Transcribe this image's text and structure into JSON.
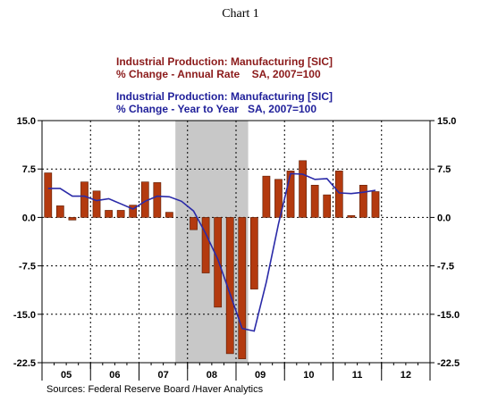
{
  "chart_data": {
    "type": "bar",
    "title": "Chart 1",
    "legend": [
      {
        "line1": "Industrial Production: Manufacturing [SIC]",
        "line2": "% Change - Annual Rate    SA, 2007=100",
        "color": "#8b1a1a"
      },
      {
        "line1": "Industrial Production: Manufacturing [SIC]",
        "line2": "% Change - Year to Year   SA, 2007=100",
        "color": "#1f1f9a"
      }
    ],
    "x_labels": [
      "05",
      "06",
      "07",
      "08",
      "09",
      "10",
      "11",
      "12"
    ],
    "y_ticks": [
      "15.0",
      "7.5",
      "0.0",
      "-7.5",
      "-15.0",
      "-22.5"
    ],
    "y_tick_values": [
      15,
      7.5,
      0,
      -7.5,
      -15,
      -22.5
    ],
    "ylim": [
      -22.5,
      15
    ],
    "recession_quarters": [
      11,
      16
    ],
    "grid": true,
    "bar_color": "#b33a0f",
    "line_color": "#2a2aa8",
    "series": [
      {
        "type": "bar",
        "values": [
          6.9,
          1.8,
          -0.4,
          5.5,
          4.1,
          1.1,
          1.1,
          1.9,
          5.5,
          5.4,
          0.8,
          null,
          -1.9,
          -8.6,
          -13.9,
          -21.1,
          -21.9,
          -11.1,
          6.4,
          5.9,
          7.2,
          8.8,
          5.0,
          3.5,
          7.2,
          0.3,
          5.0,
          4.0
        ]
      },
      {
        "type": "line",
        "values": [
          4.5,
          4.5,
          3.3,
          3.3,
          2.6,
          2.9,
          2.1,
          1.3,
          2.5,
          3.3,
          3.2,
          2.5,
          1.0,
          -2.5,
          -6.5,
          -11.8,
          -17.2,
          -17.6,
          -10.0,
          -1.0,
          6.8,
          6.7,
          5.9,
          6.0,
          3.8,
          3.7,
          3.9,
          4.2
        ]
      }
    ]
  },
  "sources": "Sources:  Federal Reserve Board /Haver Analytics"
}
